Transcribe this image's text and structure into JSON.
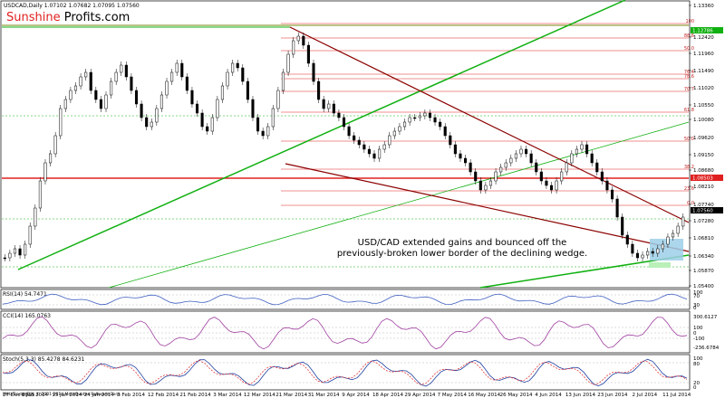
{
  "header": {
    "symbol_line": "USDCAD,Daily  1.07102 1.07682 1.07095 1.07560",
    "brand_part1": "Sunshine",
    "brand_part2": " Profits.com"
  },
  "annotation": {
    "line1": "USD/CAD extended gains and bounced off the",
    "line2": "previously-broken lower border of the declining wedge."
  },
  "price_axis": {
    "ticks": [
      "1.13360",
      "1.12420",
      "1.11960",
      "1.11490",
      "1.11020",
      "1.10550",
      "1.10080",
      "1.09620",
      "1.09150",
      "1.08680",
      "1.08210",
      "1.07740",
      "1.07280",
      "1.06810",
      "1.06340",
      "1.05870",
      "1.05400"
    ],
    "current_price_tag": "1.07560",
    "high_tag": "1.12786",
    "level_tag": "1.08503"
  },
  "fib_labels": [
    "100",
    "88.6",
    "50.0",
    "76.4",
    "78.6",
    "70.7",
    "61.8",
    "50.0",
    "38.2",
    "23.6",
    "0.0"
  ],
  "indicators": {
    "rsi": {
      "title": "RSI(14) 54.7471",
      "ticks": [
        "100",
        "70",
        "30",
        "0"
      ]
    },
    "cci": {
      "title": "CCI(14) 165.0763",
      "ticks": [
        "300.6127",
        "100",
        "0",
        "-100",
        "-236.6784"
      ]
    },
    "stoch": {
      "title": "Stoch(5,3,3) 85.4278 84.6231",
      "ticks": [
        "100",
        "80",
        "20",
        "0"
      ]
    }
  },
  "date_axis": [
    "27 Dec 2013",
    "6 Jan 2014",
    "15 Jan 2014",
    "24 Jan 2014",
    "3 Feb 2014",
    "12 Feb 2014",
    "21 Feb 2014",
    "3 Mar 2014",
    "12 Mar 2014",
    "21 Mar 2014",
    "31 Mar 2014",
    "9 Apr 2014",
    "18 Apr 2014",
    "29 Apr 2014",
    "7 May 2014",
    "16 May 2014",
    "26 May 2014",
    "4 Jun 2014",
    "13 Jun 2014",
    "23 Jun 2014",
    "2 Jul 2014",
    "11 Jul 2014"
  ],
  "footer": "MetaTrader FIX, © 2001-2014 MetaQuotes Software Corp.",
  "colors": {
    "green": "#10b010",
    "dark_red": "#8b0000",
    "red": "#e02020",
    "blue_box": "#9ecfe8",
    "rsi": "#4060c0",
    "cci": "#a040a0",
    "stoch_main": "#2040a0",
    "stoch_signal": "#e02020"
  },
  "chart_data": {
    "type": "candlestick",
    "symbol": "USDCAD",
    "timeframe": "Daily",
    "ohlc_last": {
      "open": 1.07102,
      "high": 1.07682,
      "low": 1.07095,
      "close": 1.0756
    },
    "ylim": [
      1.054,
      1.1336
    ],
    "indicator_values": {
      "RSI(14)": 54.7471,
      "CCI(14)": 165.0763,
      "Stoch(5,3,3)": [
        85.4278,
        84.6231
      ]
    }
  }
}
